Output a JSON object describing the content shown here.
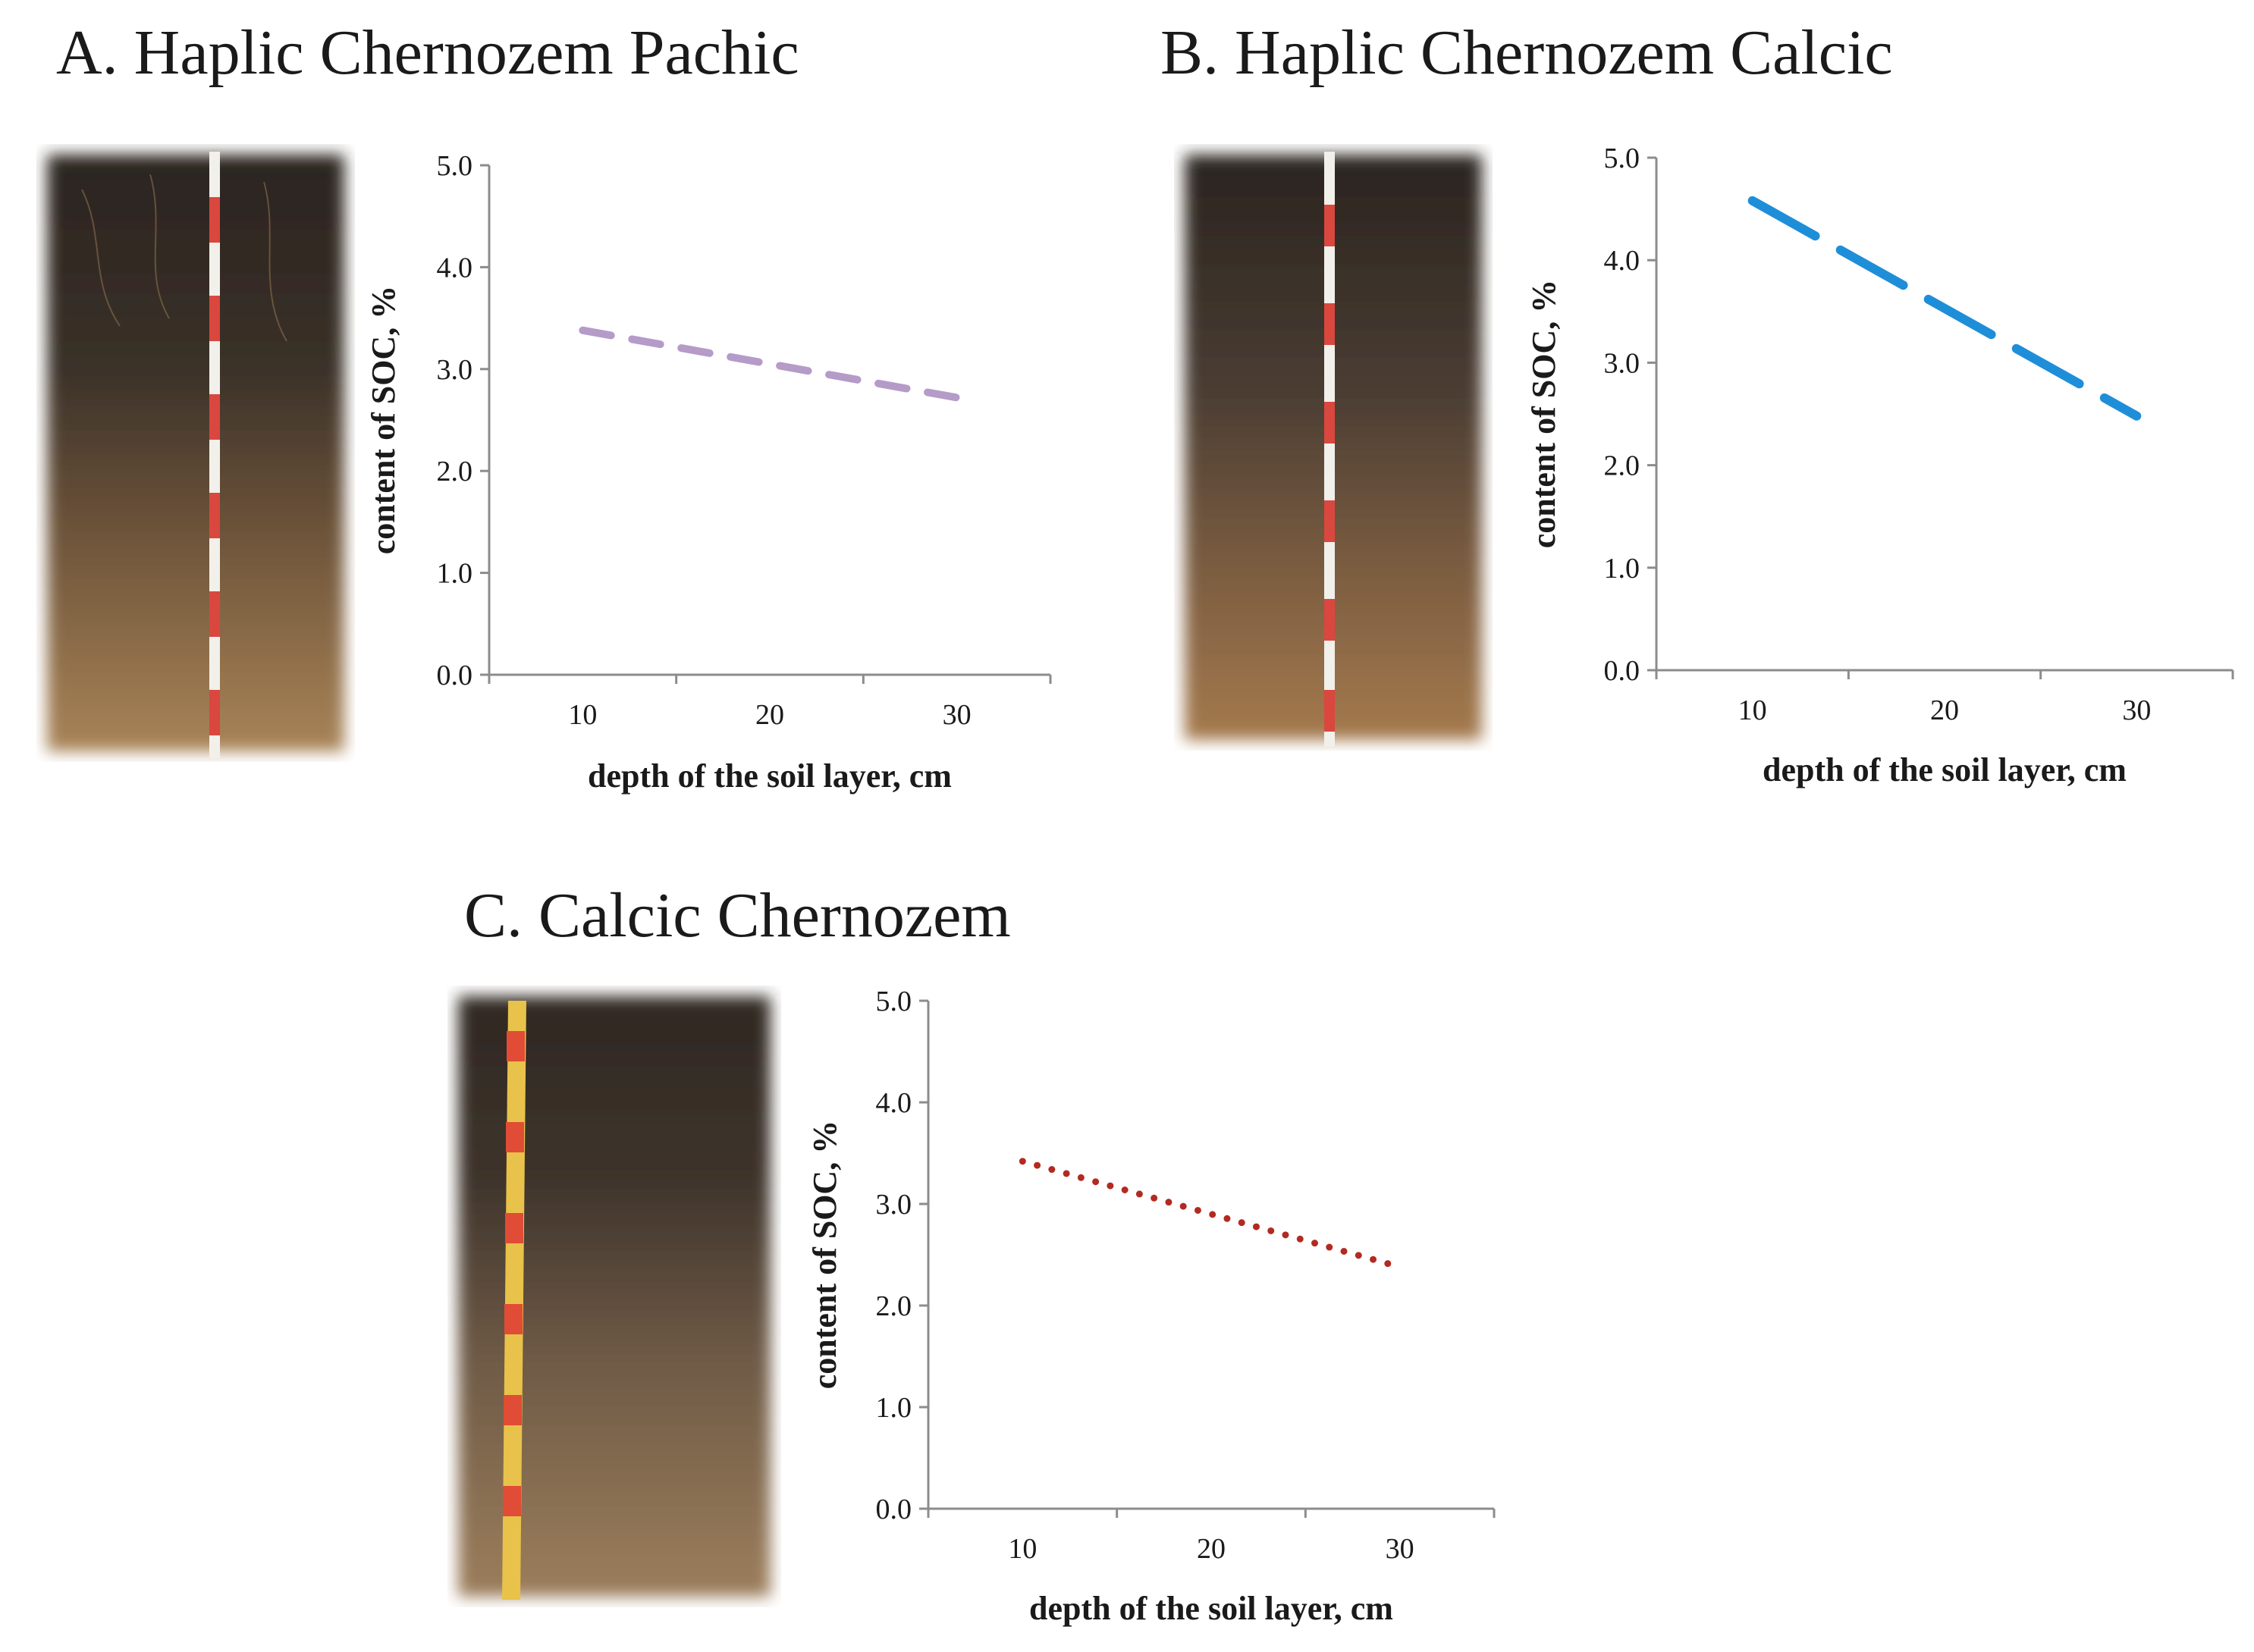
{
  "panels": [
    {
      "title": "A. Haplic Chernozem Pachic",
      "photo_icon": "soil-profile-photo",
      "chart_data": {
        "type": "line",
        "x": [
          10,
          30
        ],
        "series": [
          {
            "values": [
              3.38,
              2.72
            ],
            "color": "#b49bc8",
            "style": "dashed"
          }
        ],
        "xticks": [
          "10",
          "20",
          "30"
        ],
        "yticks": [
          "0.0",
          "1.0",
          "2.0",
          "3.0",
          "4.0",
          "5.0"
        ],
        "xlabel": "depth of the soil layer, cm",
        "ylabel": "content of  SOC, %",
        "ylim": [
          0,
          5
        ],
        "grid": false
      }
    },
    {
      "title": "B. Haplic Chernozem Calcic",
      "photo_icon": "soil-profile-photo",
      "chart_data": {
        "type": "line",
        "x": [
          10,
          30
        ],
        "series": [
          {
            "values": [
              4.58,
              2.48
            ],
            "color": "#1f8ed8",
            "style": "long-dashed"
          }
        ],
        "xticks": [
          "10",
          "20",
          "30"
        ],
        "yticks": [
          "0.0",
          "1.0",
          "2.0",
          "3.0",
          "4.0",
          "5.0"
        ],
        "xlabel": "depth of the soil layer, cm",
        "ylabel": "content of  SOC, %",
        "ylim": [
          0,
          5
        ],
        "grid": false
      }
    },
    {
      "title": "C. Calcic Chernozem",
      "photo_icon": "soil-profile-photo",
      "chart_data": {
        "type": "line",
        "x": [
          10,
          30
        ],
        "series": [
          {
            "values": [
              3.42,
              2.38
            ],
            "color": "#b22a22",
            "style": "dotted"
          }
        ],
        "xticks": [
          "10",
          "20",
          "30"
        ],
        "yticks": [
          "0.0",
          "1.0",
          "2.0",
          "3.0",
          "4.0",
          "5.0"
        ],
        "xlabel": "depth of the soil layer, cm",
        "ylabel": "content of  SOC, %",
        "ylim": [
          0,
          5
        ],
        "grid": false
      }
    }
  ]
}
